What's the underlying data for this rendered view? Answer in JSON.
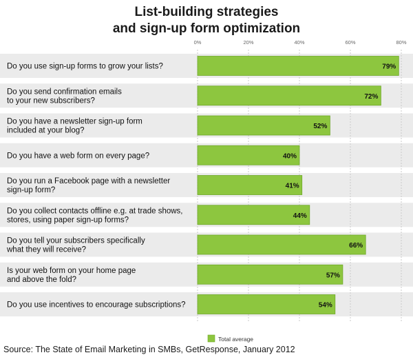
{
  "chart_data": {
    "type": "bar",
    "orientation": "horizontal",
    "title_lines": [
      "List-building strategies",
      "and sign-up form optimization"
    ],
    "categories": [
      [
        "Do you use sign-up forms to grow your lists?"
      ],
      [
        "Do you send confirmation emails",
        "to your new subscribers?"
      ],
      [
        "Do you have a newsletter sign-up form",
        "included at your blog?"
      ],
      [
        "Do you have a web form on every page?"
      ],
      [
        "Do you run a Facebook page with a newsletter",
        "sign-up form?"
      ],
      [
        "Do you collect contacts offline e.g. at trade shows,",
        "stores, using paper sign-up forms?"
      ],
      [
        "Do you tell your subscribers specifically",
        "what they will receive?"
      ],
      [
        "Is your web form on your home page",
        "and above the fold?"
      ],
      [
        "Do you use incentives to encourage subscriptions?"
      ]
    ],
    "series": [
      {
        "name": "Total average",
        "values": [
          79,
          72,
          52,
          40,
          41,
          44,
          66,
          57,
          54
        ]
      }
    ],
    "value_labels": [
      "79%",
      "72%",
      "52%",
      "40%",
      "41%",
      "44%",
      "66%",
      "57%",
      "54%"
    ],
    "xticks": [
      "0%",
      "20%",
      "40%",
      "60%",
      "80%"
    ],
    "xlim": [
      0,
      80
    ],
    "grid": true,
    "legend_position": "bottom",
    "colors": {
      "bar": "#8dc63f",
      "bar_border": "#6fa82a",
      "row_band": "#ebebeb",
      "grid": "#c8c8c8"
    }
  },
  "source": "Source: The State of Email Marketing in SMBs, GetResponse, January 2012"
}
